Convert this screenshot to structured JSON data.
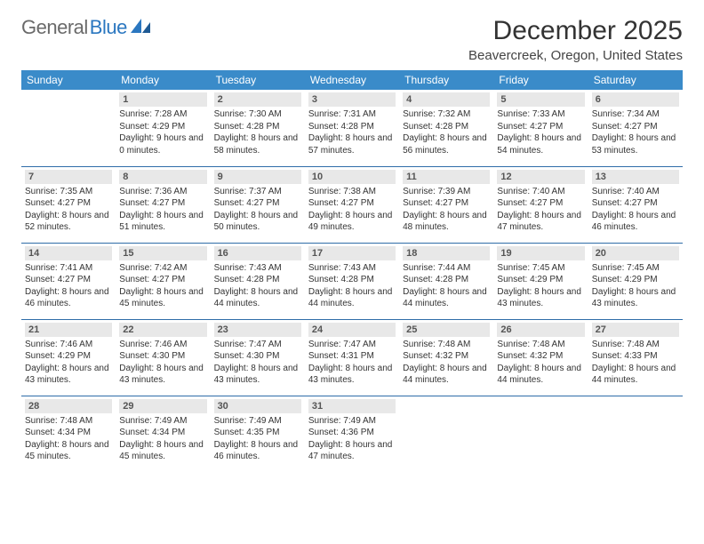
{
  "logo": {
    "part1": "General",
    "part2": "Blue"
  },
  "title": "December 2025",
  "location": "Beavercreek, Oregon, United States",
  "colors": {
    "header_bg": "#3a8bc9",
    "header_fg": "#ffffff",
    "daynum_bg": "#e8e8e8",
    "daynum_fg": "#555555",
    "row_divider": "#2f6da8",
    "logo_gray": "#6a6a6a",
    "logo_blue": "#2b77c0"
  },
  "day_headers": [
    "Sunday",
    "Monday",
    "Tuesday",
    "Wednesday",
    "Thursday",
    "Friday",
    "Saturday"
  ],
  "weeks": [
    [
      {
        "n": "",
        "sr": "",
        "ss": "",
        "dl": ""
      },
      {
        "n": "1",
        "sr": "7:28 AM",
        "ss": "4:29 PM",
        "dl": "9 hours and 0 minutes."
      },
      {
        "n": "2",
        "sr": "7:30 AM",
        "ss": "4:28 PM",
        "dl": "8 hours and 58 minutes."
      },
      {
        "n": "3",
        "sr": "7:31 AM",
        "ss": "4:28 PM",
        "dl": "8 hours and 57 minutes."
      },
      {
        "n": "4",
        "sr": "7:32 AM",
        "ss": "4:28 PM",
        "dl": "8 hours and 56 minutes."
      },
      {
        "n": "5",
        "sr": "7:33 AM",
        "ss": "4:27 PM",
        "dl": "8 hours and 54 minutes."
      },
      {
        "n": "6",
        "sr": "7:34 AM",
        "ss": "4:27 PM",
        "dl": "8 hours and 53 minutes."
      }
    ],
    [
      {
        "n": "7",
        "sr": "7:35 AM",
        "ss": "4:27 PM",
        "dl": "8 hours and 52 minutes."
      },
      {
        "n": "8",
        "sr": "7:36 AM",
        "ss": "4:27 PM",
        "dl": "8 hours and 51 minutes."
      },
      {
        "n": "9",
        "sr": "7:37 AM",
        "ss": "4:27 PM",
        "dl": "8 hours and 50 minutes."
      },
      {
        "n": "10",
        "sr": "7:38 AM",
        "ss": "4:27 PM",
        "dl": "8 hours and 49 minutes."
      },
      {
        "n": "11",
        "sr": "7:39 AM",
        "ss": "4:27 PM",
        "dl": "8 hours and 48 minutes."
      },
      {
        "n": "12",
        "sr": "7:40 AM",
        "ss": "4:27 PM",
        "dl": "8 hours and 47 minutes."
      },
      {
        "n": "13",
        "sr": "7:40 AM",
        "ss": "4:27 PM",
        "dl": "8 hours and 46 minutes."
      }
    ],
    [
      {
        "n": "14",
        "sr": "7:41 AM",
        "ss": "4:27 PM",
        "dl": "8 hours and 46 minutes."
      },
      {
        "n": "15",
        "sr": "7:42 AM",
        "ss": "4:27 PM",
        "dl": "8 hours and 45 minutes."
      },
      {
        "n": "16",
        "sr": "7:43 AM",
        "ss": "4:28 PM",
        "dl": "8 hours and 44 minutes."
      },
      {
        "n": "17",
        "sr": "7:43 AM",
        "ss": "4:28 PM",
        "dl": "8 hours and 44 minutes."
      },
      {
        "n": "18",
        "sr": "7:44 AM",
        "ss": "4:28 PM",
        "dl": "8 hours and 44 minutes."
      },
      {
        "n": "19",
        "sr": "7:45 AM",
        "ss": "4:29 PM",
        "dl": "8 hours and 43 minutes."
      },
      {
        "n": "20",
        "sr": "7:45 AM",
        "ss": "4:29 PM",
        "dl": "8 hours and 43 minutes."
      }
    ],
    [
      {
        "n": "21",
        "sr": "7:46 AM",
        "ss": "4:29 PM",
        "dl": "8 hours and 43 minutes."
      },
      {
        "n": "22",
        "sr": "7:46 AM",
        "ss": "4:30 PM",
        "dl": "8 hours and 43 minutes."
      },
      {
        "n": "23",
        "sr": "7:47 AM",
        "ss": "4:30 PM",
        "dl": "8 hours and 43 minutes."
      },
      {
        "n": "24",
        "sr": "7:47 AM",
        "ss": "4:31 PM",
        "dl": "8 hours and 43 minutes."
      },
      {
        "n": "25",
        "sr": "7:48 AM",
        "ss": "4:32 PM",
        "dl": "8 hours and 44 minutes."
      },
      {
        "n": "26",
        "sr": "7:48 AM",
        "ss": "4:32 PM",
        "dl": "8 hours and 44 minutes."
      },
      {
        "n": "27",
        "sr": "7:48 AM",
        "ss": "4:33 PM",
        "dl": "8 hours and 44 minutes."
      }
    ],
    [
      {
        "n": "28",
        "sr": "7:48 AM",
        "ss": "4:34 PM",
        "dl": "8 hours and 45 minutes."
      },
      {
        "n": "29",
        "sr": "7:49 AM",
        "ss": "4:34 PM",
        "dl": "8 hours and 45 minutes."
      },
      {
        "n": "30",
        "sr": "7:49 AM",
        "ss": "4:35 PM",
        "dl": "8 hours and 46 minutes."
      },
      {
        "n": "31",
        "sr": "7:49 AM",
        "ss": "4:36 PM",
        "dl": "8 hours and 47 minutes."
      },
      {
        "n": "",
        "sr": "",
        "ss": "",
        "dl": ""
      },
      {
        "n": "",
        "sr": "",
        "ss": "",
        "dl": ""
      },
      {
        "n": "",
        "sr": "",
        "ss": "",
        "dl": ""
      }
    ]
  ],
  "labels": {
    "sunrise": "Sunrise: ",
    "sunset": "Sunset: ",
    "daylight": "Daylight: "
  }
}
